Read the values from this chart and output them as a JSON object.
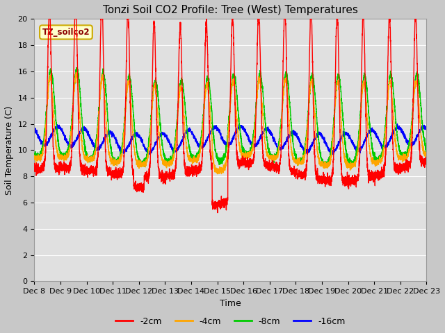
{
  "title": "Tonzi Soil CO2 Profile: Tree (West) Temperatures",
  "xlabel": "Time",
  "ylabel": "Soil Temperature (C)",
  "ylim": [
    0,
    20
  ],
  "annotation_text": "TZ_soilco2",
  "legend_labels": [
    "-2cm",
    "-4cm",
    "-8cm",
    "-16cm"
  ],
  "legend_colors": [
    "#ff0000",
    "#ffa500",
    "#00cc00",
    "#0000ff"
  ],
  "x_tick_labels": [
    "Dec 8",
    "Dec 9",
    "Dec 10",
    "Dec 11",
    "Dec 12",
    "Dec 13",
    "Dec 14",
    "Dec 15",
    "Dec 16",
    "Dec 17",
    "Dec 18",
    "Dec 19",
    "Dec 20",
    "Dec 21",
    "Dec 22",
    "Dec 23"
  ],
  "plot_bg_color": "#e0e0e0",
  "fig_bg_color": "#c8c8c8",
  "grid_color": "#ffffff",
  "title_fontsize": 11,
  "axis_fontsize": 9,
  "tick_fontsize": 8
}
